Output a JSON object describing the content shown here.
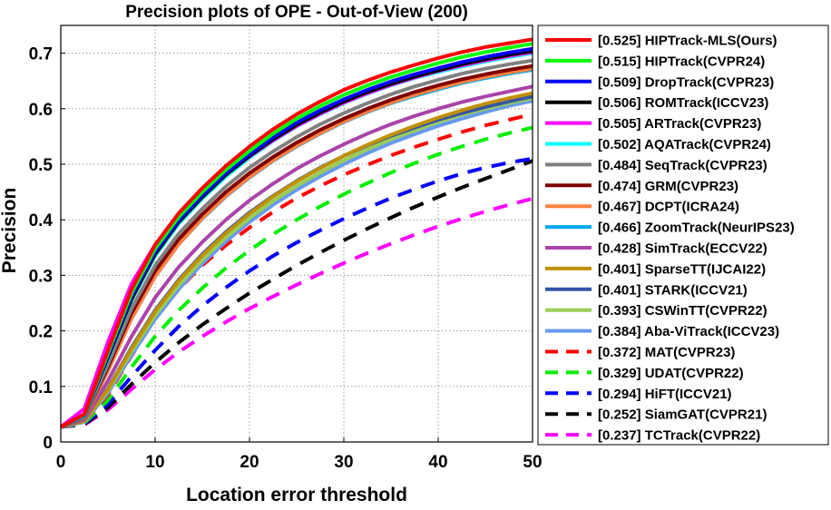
{
  "chart_data": {
    "type": "line",
    "title": "Precision plots of OPE - Out-of-View (200)",
    "xlabel": "Location error threshold",
    "ylabel": "Precision",
    "xlim": [
      0,
      50
    ],
    "ylim": [
      0,
      0.75
    ],
    "xticks": [
      "0",
      "10",
      "20",
      "30",
      "40",
      "50"
    ],
    "yticks": [
      "0",
      "0.1",
      "0.2",
      "0.3",
      "0.4",
      "0.5",
      "0.6",
      "0.7"
    ],
    "grid": true,
    "legend_position": "outside-right",
    "x": [
      0,
      2.5,
      5,
      7.5,
      10,
      12.5,
      15,
      17.5,
      20,
      22.5,
      25,
      27.5,
      30,
      32.5,
      35,
      37.5,
      40,
      42.5,
      45,
      47.5,
      50
    ],
    "series": [
      {
        "name": "[0.525] HIPTrack-MLS(Ours)",
        "color": "#ff0000",
        "dash": false,
        "values": [
          0.027,
          0.05,
          0.165,
          0.275,
          0.355,
          0.412,
          0.457,
          0.497,
          0.532,
          0.563,
          0.59,
          0.613,
          0.634,
          0.651,
          0.666,
          0.679,
          0.691,
          0.702,
          0.711,
          0.718,
          0.725
        ]
      },
      {
        "name": "[0.515] HIPTrack(CVPR24)",
        "color": "#00ff00",
        "dash": false,
        "values": [
          0.027,
          0.049,
          0.16,
          0.268,
          0.348,
          0.405,
          0.45,
          0.49,
          0.524,
          0.555,
          0.582,
          0.605,
          0.625,
          0.642,
          0.657,
          0.67,
          0.682,
          0.693,
          0.702,
          0.71,
          0.717
        ]
      },
      {
        "name": "[0.509] DropTrack(CVPR23)",
        "color": "#0000ff",
        "dash": false,
        "values": [
          0.027,
          0.048,
          0.155,
          0.262,
          0.342,
          0.399,
          0.444,
          0.484,
          0.518,
          0.548,
          0.575,
          0.597,
          0.617,
          0.634,
          0.649,
          0.662,
          0.673,
          0.684,
          0.693,
          0.701,
          0.708
        ]
      },
      {
        "name": "[0.506] ROMTrack(ICCV23)",
        "color": "#000000",
        "dash": false,
        "values": [
          0.027,
          0.048,
          0.152,
          0.257,
          0.338,
          0.396,
          0.441,
          0.481,
          0.515,
          0.545,
          0.571,
          0.593,
          0.613,
          0.63,
          0.645,
          0.658,
          0.669,
          0.68,
          0.689,
          0.697,
          0.704
        ]
      },
      {
        "name": "[0.505] ARTrack(CVPR23)",
        "color": "#ff00ff",
        "dash": false,
        "values": [
          0.027,
          0.06,
          0.18,
          0.285,
          0.355,
          0.405,
          0.446,
          0.482,
          0.514,
          0.543,
          0.569,
          0.591,
          0.611,
          0.628,
          0.643,
          0.656,
          0.668,
          0.678,
          0.687,
          0.695,
          0.702
        ]
      },
      {
        "name": "[0.502] AQATrack(CVPR24)",
        "color": "#00ffff",
        "dash": false,
        "values": [
          0.027,
          0.047,
          0.15,
          0.255,
          0.335,
          0.393,
          0.438,
          0.478,
          0.512,
          0.542,
          0.568,
          0.59,
          0.61,
          0.627,
          0.642,
          0.655,
          0.666,
          0.676,
          0.685,
          0.693,
          0.7
        ]
      },
      {
        "name": "[0.484] SeqTrack(CVPR23)",
        "color": "#808080",
        "dash": false,
        "values": [
          0.027,
          0.045,
          0.14,
          0.24,
          0.318,
          0.375,
          0.42,
          0.46,
          0.494,
          0.523,
          0.549,
          0.572,
          0.592,
          0.61,
          0.626,
          0.64,
          0.652,
          0.663,
          0.672,
          0.68,
          0.687
        ]
      },
      {
        "name": "[0.474] GRM(CVPR23)",
        "color": "#800000",
        "dash": false,
        "values": [
          0.027,
          0.044,
          0.135,
          0.232,
          0.308,
          0.365,
          0.41,
          0.45,
          0.484,
          0.513,
          0.539,
          0.562,
          0.582,
          0.6,
          0.616,
          0.63,
          0.642,
          0.653,
          0.662,
          0.67,
          0.677
        ]
      },
      {
        "name": "[0.467] DCPT(ICRA24)",
        "color": "#ff8040",
        "dash": false,
        "values": [
          0.027,
          0.043,
          0.128,
          0.222,
          0.298,
          0.356,
          0.403,
          0.443,
          0.477,
          0.507,
          0.533,
          0.556,
          0.577,
          0.595,
          0.611,
          0.625,
          0.637,
          0.648,
          0.657,
          0.665,
          0.672
        ]
      },
      {
        "name": "[0.466] ZoomTrack(NeurIPS23)",
        "color": "#00aaee",
        "dash": false,
        "values": [
          0.027,
          0.043,
          0.128,
          0.222,
          0.298,
          0.356,
          0.402,
          0.442,
          0.476,
          0.506,
          0.532,
          0.555,
          0.576,
          0.594,
          0.61,
          0.623,
          0.635,
          0.646,
          0.655,
          0.663,
          0.67
        ]
      },
      {
        "name": "[0.428] SimTrack(ECCV22)",
        "color": "#aa44aa",
        "dash": false,
        "values": [
          0.027,
          0.04,
          0.11,
          0.19,
          0.26,
          0.315,
          0.36,
          0.4,
          0.435,
          0.465,
          0.492,
          0.515,
          0.536,
          0.555,
          0.572,
          0.587,
          0.6,
          0.612,
          0.622,
          0.631,
          0.64
        ]
      },
      {
        "name": "[0.401] SparseTT(IJCAI22)",
        "color": "#c09000",
        "dash": false,
        "values": [
          0.027,
          0.038,
          0.095,
          0.168,
          0.235,
          0.29,
          0.336,
          0.376,
          0.411,
          0.442,
          0.469,
          0.493,
          0.515,
          0.535,
          0.553,
          0.569,
          0.584,
          0.597,
          0.609,
          0.619,
          0.628
        ]
      },
      {
        "name": "[0.401] STARK(ICCV21)",
        "color": "#3355aa",
        "dash": false,
        "values": [
          0.027,
          0.038,
          0.096,
          0.17,
          0.237,
          0.292,
          0.338,
          0.378,
          0.413,
          0.443,
          0.47,
          0.494,
          0.515,
          0.534,
          0.551,
          0.566,
          0.58,
          0.592,
          0.603,
          0.613,
          0.622
        ]
      },
      {
        "name": "[0.393] CSWinTT(CVPR22)",
        "color": "#99cc55",
        "dash": false,
        "values": [
          0.027,
          0.037,
          0.092,
          0.163,
          0.228,
          0.282,
          0.328,
          0.368,
          0.403,
          0.434,
          0.461,
          0.485,
          0.507,
          0.527,
          0.545,
          0.561,
          0.576,
          0.589,
          0.6,
          0.61,
          0.619
        ]
      },
      {
        "name": "[0.384] Aba-ViTrack(ICCV23)",
        "color": "#6699ee",
        "dash": false,
        "values": [
          0.027,
          0.036,
          0.088,
          0.156,
          0.221,
          0.275,
          0.321,
          0.361,
          0.396,
          0.427,
          0.454,
          0.478,
          0.5,
          0.52,
          0.538,
          0.554,
          0.569,
          0.582,
          0.594,
          0.605,
          0.614
        ]
      },
      {
        "name": "[0.372] MAT(CVPR23)",
        "color": "#ff0000",
        "dash": true,
        "values": [
          0.027,
          0.036,
          0.085,
          0.155,
          0.222,
          0.275,
          0.318,
          0.354,
          0.386,
          0.414,
          0.439,
          0.461,
          0.481,
          0.499,
          0.516,
          0.531,
          0.545,
          0.558,
          0.57,
          0.58,
          0.59
        ]
      },
      {
        "name": "[0.329] UDAT(CVPR22)",
        "color": "#00ee00",
        "dash": true,
        "values": [
          0.027,
          0.034,
          0.075,
          0.135,
          0.19,
          0.237,
          0.277,
          0.313,
          0.345,
          0.374,
          0.4,
          0.424,
          0.446,
          0.466,
          0.485,
          0.502,
          0.518,
          0.532,
          0.545,
          0.556,
          0.566
        ]
      },
      {
        "name": "[0.294] HiFT(ICCV21)",
        "color": "#0000ff",
        "dash": true,
        "values": [
          0.027,
          0.033,
          0.068,
          0.118,
          0.165,
          0.208,
          0.245,
          0.278,
          0.308,
          0.335,
          0.359,
          0.381,
          0.402,
          0.421,
          0.439,
          0.455,
          0.47,
          0.483,
          0.494,
          0.503,
          0.51
        ]
      },
      {
        "name": "[0.252] SiamGAT(CVPR21)",
        "color": "#000000",
        "dash": true,
        "values": [
          0.027,
          0.032,
          0.062,
          0.104,
          0.143,
          0.179,
          0.211,
          0.24,
          0.268,
          0.293,
          0.318,
          0.341,
          0.363,
          0.384,
          0.404,
          0.423,
          0.441,
          0.458,
          0.474,
          0.49,
          0.506
        ]
      },
      {
        "name": "[0.237] TCTrack(CVPR22)",
        "color": "#ff00ff",
        "dash": true,
        "values": [
          0.027,
          0.031,
          0.058,
          0.095,
          0.13,
          0.162,
          0.19,
          0.216,
          0.24,
          0.262,
          0.283,
          0.303,
          0.322,
          0.34,
          0.357,
          0.373,
          0.388,
          0.402,
          0.415,
          0.427,
          0.438
        ]
      }
    ]
  }
}
